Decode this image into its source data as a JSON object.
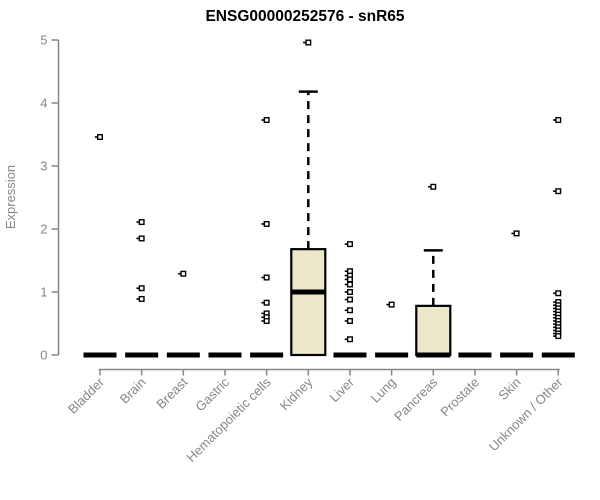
{
  "chart_data": {
    "type": "boxplot",
    "title": "ENSG00000252576 - snR65",
    "ylabel": "Expression",
    "xlabel": "",
    "ylim": [
      0,
      5
    ],
    "yticks": [
      0,
      1,
      2,
      3,
      4,
      5
    ],
    "grid": false,
    "legend": "none",
    "box_fill_color": "#EDE8CC",
    "box_stroke_color": "#000000",
    "axis_color": "#878787",
    "title_color": "#000000",
    "categories": [
      "Bladder",
      "Brain",
      "Breast",
      "Gastric",
      "Hematopoietic cells",
      "Kidney",
      "Liver",
      "Lung",
      "Pancreas",
      "Prostate",
      "Skin",
      "Unknown / Other"
    ],
    "boxes": [
      {
        "category": "Bladder",
        "q1": 0,
        "median": 0,
        "q3": 0,
        "whisker_low": 0,
        "whisker_high": 0,
        "outliers": [
          3.46
        ]
      },
      {
        "category": "Brain",
        "q1": 0,
        "median": 0,
        "q3": 0,
        "whisker_low": 0,
        "whisker_high": 0,
        "outliers": [
          2.11,
          1.85,
          1.06,
          0.89
        ]
      },
      {
        "category": "Breast",
        "q1": 0,
        "median": 0,
        "q3": 0,
        "whisker_low": 0,
        "whisker_high": 0,
        "outliers": [
          1.29
        ]
      },
      {
        "category": "Gastric",
        "q1": 0,
        "median": 0,
        "q3": 0,
        "whisker_low": 0,
        "whisker_high": 0,
        "outliers": []
      },
      {
        "category": "Hematopoietic cells",
        "q1": 0,
        "median": 0,
        "q3": 0,
        "whisker_low": 0,
        "whisker_high": 0,
        "outliers": [
          3.73,
          2.08,
          1.23,
          0.83,
          0.66,
          0.6,
          0.54
        ]
      },
      {
        "category": "Kidney",
        "q1": 0,
        "median": 1.0,
        "q3": 1.68,
        "whisker_low": 0,
        "whisker_high": 4.18,
        "outliers": [
          4.96
        ]
      },
      {
        "category": "Liver",
        "q1": 0,
        "median": 0,
        "q3": 0,
        "whisker_low": 0,
        "whisker_high": 0,
        "outliers": [
          1.76,
          1.33,
          1.26,
          1.2,
          1.12,
          1.0,
          0.88,
          0.71,
          0.54,
          0.25
        ]
      },
      {
        "category": "Lung",
        "q1": 0,
        "median": 0,
        "q3": 0,
        "whisker_low": 0,
        "whisker_high": 0,
        "outliers": [
          0.8
        ]
      },
      {
        "category": "Pancreas",
        "q1": 0,
        "median": 0,
        "q3": 0.78,
        "whisker_low": 0,
        "whisker_high": 1.66,
        "outliers": [
          2.67
        ]
      },
      {
        "category": "Prostate",
        "q1": 0,
        "median": 0,
        "q3": 0,
        "whisker_low": 0,
        "whisker_high": 0,
        "outliers": []
      },
      {
        "category": "Skin",
        "q1": 0,
        "median": 0,
        "q3": 0,
        "whisker_low": 0,
        "whisker_high": 0,
        "outliers": [
          1.93
        ]
      },
      {
        "category": "Unknown / Other",
        "q1": 0,
        "median": 0,
        "q3": 0,
        "whisker_low": 0,
        "whisker_high": 0,
        "outliers": [
          3.73,
          2.6,
          0.98,
          0.84,
          0.79,
          0.74,
          0.69,
          0.64,
          0.59,
          0.54,
          0.49,
          0.44,
          0.39,
          0.34,
          0.3
        ]
      }
    ]
  }
}
